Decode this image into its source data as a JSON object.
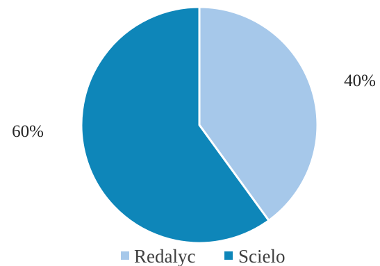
{
  "chart_data": {
    "type": "pie",
    "categories": [
      "Redalyc",
      "Scielo"
    ],
    "values": [
      40,
      60
    ],
    "data_labels": [
      "40%",
      "60%"
    ],
    "colors": [
      "#a6c8ea",
      "#0e86b9"
    ],
    "start_angle": "12 o'clock",
    "direction": "clockwise",
    "legend_position": "bottom",
    "title": ""
  }
}
